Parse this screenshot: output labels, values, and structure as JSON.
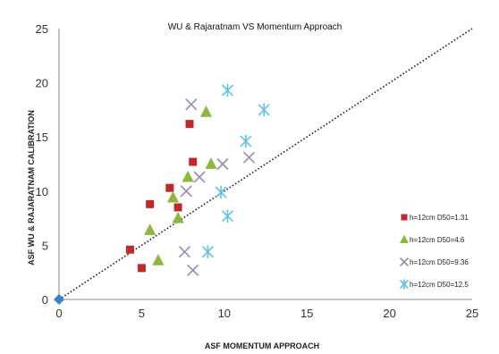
{
  "chart_data": {
    "type": "scatter",
    "title": "WU & Rajaratnam VS Momentum Approach",
    "xlabel": "ASF MOMENTUM APPROACH",
    "ylabel": "ASF WU & RAJARATNAM CALIBRATION",
    "xlim": [
      0,
      25
    ],
    "ylim": [
      0,
      25
    ],
    "x_ticks": [
      "0",
      "5",
      "10",
      "15",
      "20",
      "25"
    ],
    "y_ticks": [
      "0",
      "5",
      "10",
      "15",
      "20",
      "25"
    ],
    "grid": false,
    "legend_position": "right",
    "reference_line": {
      "type": "dotted",
      "from": [
        0,
        0
      ],
      "to": [
        25,
        25
      ],
      "color": "#222222"
    },
    "origin_marker": {
      "x": 0,
      "y": 0,
      "color": "#3a7fd0"
    },
    "series": [
      {
        "name": "h=12cm D50=1.31",
        "marker": "square",
        "color": "#c0282c",
        "points": [
          [
            4.3,
            4.6
          ],
          [
            5.0,
            2.9
          ],
          [
            5.5,
            8.8
          ],
          [
            6.7,
            10.3
          ],
          [
            7.2,
            8.5
          ],
          [
            7.9,
            16.2
          ],
          [
            8.1,
            12.7
          ]
        ]
      },
      {
        "name": "h=12cm D50=4.6",
        "marker": "triangle",
        "color": "#8db83c",
        "points": [
          [
            5.5,
            6.4
          ],
          [
            6.0,
            3.6
          ],
          [
            6.9,
            9.4
          ],
          [
            7.2,
            7.5
          ],
          [
            7.8,
            11.3
          ],
          [
            8.9,
            17.3
          ],
          [
            9.2,
            12.5
          ]
        ]
      },
      {
        "name": "h=12cm D50=9.36",
        "marker": "x",
        "color": "#9a88b8",
        "points": [
          [
            7.6,
            4.4
          ],
          [
            7.7,
            10.0
          ],
          [
            8.0,
            18.0
          ],
          [
            8.1,
            2.7
          ],
          [
            8.5,
            11.3
          ],
          [
            9.9,
            12.5
          ],
          [
            11.5,
            13.1
          ]
        ]
      },
      {
        "name": "h=12cm D50=12.5",
        "marker": "star",
        "color": "#5ec2e4",
        "points": [
          [
            9.0,
            4.4
          ],
          [
            9.8,
            9.9
          ],
          [
            10.2,
            7.7
          ],
          [
            10.2,
            19.3
          ],
          [
            11.3,
            14.6
          ],
          [
            12.4,
            17.5
          ]
        ]
      }
    ]
  }
}
